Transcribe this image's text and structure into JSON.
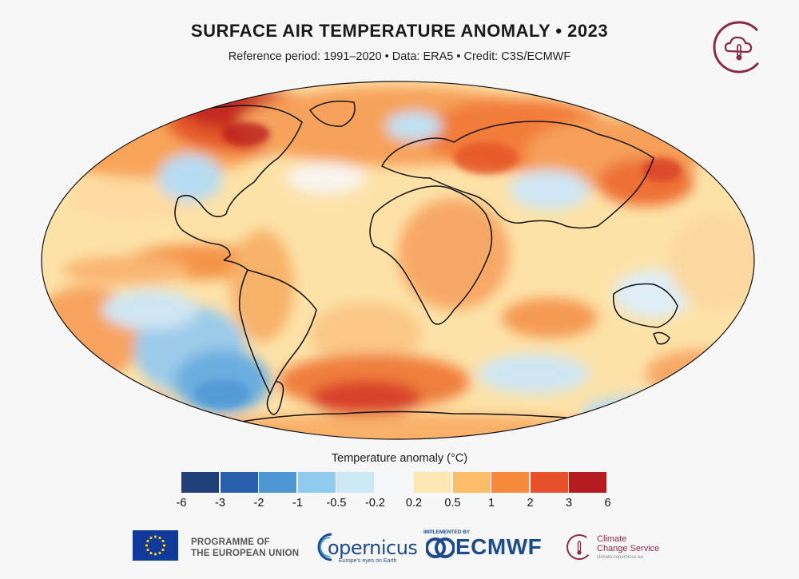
{
  "header": {
    "title": "SURFACE AIR TEMPERATURE ANOMALY • 2023",
    "subtitle": "Reference period: 1991–2020 • Data: ERA5 • Credit: C3S/ECMWF"
  },
  "map": {
    "projection": "Robinson",
    "variable": "Surface air temperature anomaly, 2023",
    "coastline_color": "#111111"
  },
  "legend": {
    "title": "Temperature anomaly (°C)",
    "colors": [
      "#1e3f7a",
      "#2a5fae",
      "#4f97d4",
      "#8ecbee",
      "#cbe8f5",
      "#f4f8fb",
      "#fde7b4",
      "#fbbd6a",
      "#f68a3a",
      "#e8502b",
      "#b51c1f"
    ],
    "ticks": [
      "-6",
      "-3",
      "-2",
      "-1",
      "-0.5",
      "-0.2",
      "0.2",
      "0.5",
      "1",
      "2",
      "3",
      "6"
    ]
  },
  "footer": {
    "eu_text_line1": "PROGRAMME OF",
    "eu_text_line2": "THE EUROPEAN UNION",
    "copernicus_word": "opernicus",
    "copernicus_tagline": "Europe's eyes on Earth",
    "implemented_by": "IMPLEMENTED BY",
    "ecmwf_word": "ECMWF",
    "ccs_line1": "Climate",
    "ccs_line2": "Change Service",
    "ccs_url": "climate.copernicus.eu"
  },
  "brand_colors": {
    "c3s_maroon": "#8a2b46",
    "copernicus_blue": "#1d4a8a",
    "eu_blue": "#0f3a9a",
    "eu_gold": "#ffcc00"
  }
}
